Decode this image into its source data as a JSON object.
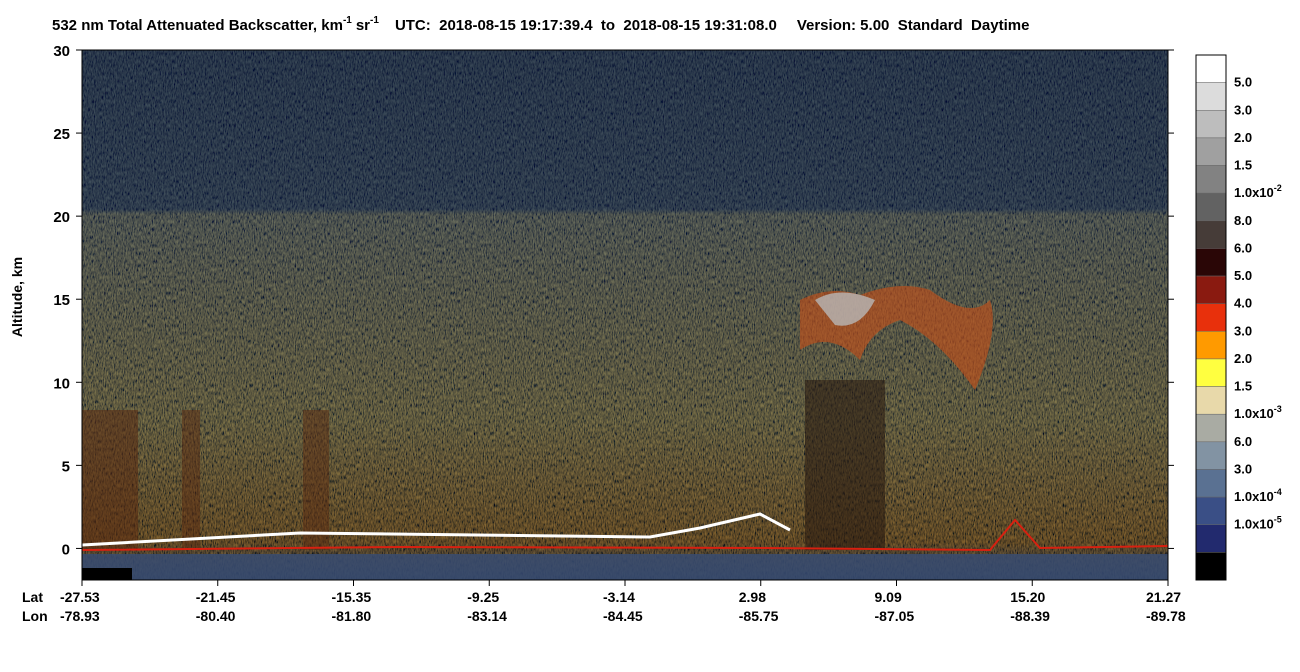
{
  "chart_data": {
    "type": "curtain",
    "title_parts": {
      "product": "532 nm Total Attenuated Backscatter, km",
      "unit_exp1": "-1",
      "unit_sr": "sr",
      "unit_exp2": "-1",
      "utc": "UTC:  2018-08-15 19:17:39.4  to  2018-08-15 19:31:08.0",
      "version": "Version: 5.00  Standard  Daytime"
    },
    "ylabel": "Altitude, km",
    "ylim": [
      -1.9,
      30
    ],
    "yticks": [
      0,
      5,
      10,
      15,
      20,
      25,
      30
    ],
    "x_row_names": [
      "Lat",
      "Lon"
    ],
    "lat_labels": [
      "-27.53",
      "-21.45",
      "-15.35",
      "-9.25",
      "-3.14",
      "2.98",
      "9.09",
      "15.20",
      "21.27"
    ],
    "lon_labels": [
      "-78.93",
      "-80.40",
      "-81.80",
      "-83.14",
      "-84.45",
      "-85.75",
      "-87.05",
      "-88.39",
      "-89.78"
    ],
    "colorbar": {
      "colors": [
        "#ffffff",
        "#dcdcdc",
        "#bdbdbd",
        "#a0a0a0",
        "#828282",
        "#626262",
        "#463c38",
        "#2a0606",
        "#8a1a10",
        "#e8300c",
        "#ff9a00",
        "#ffff40",
        "#e8d9aa",
        "#a9aba3",
        "#8293a3",
        "#5a7192",
        "#3a4f86",
        "#222a6e",
        "#000000"
      ],
      "labels": [
        {
          "text": "5.0"
        },
        {
          "text": "3.0"
        },
        {
          "text": "2.0"
        },
        {
          "text": "1.5"
        },
        {
          "text": "1.0x10",
          "sup": "-2"
        },
        {
          "text": "8.0"
        },
        {
          "text": "6.0"
        },
        {
          "text": "5.0"
        },
        {
          "text": "4.0"
        },
        {
          "text": "3.0"
        },
        {
          "text": "2.0"
        },
        {
          "text": "1.5"
        },
        {
          "text": "1.0x10",
          "sup": "-3"
        },
        {
          "text": "6.0"
        },
        {
          "text": "3.0"
        },
        {
          "text": "1.0x10",
          "sup": "-4"
        },
        {
          "text": "1.0x10",
          "sup": "-5"
        },
        {
          "text": ""
        }
      ]
    }
  }
}
